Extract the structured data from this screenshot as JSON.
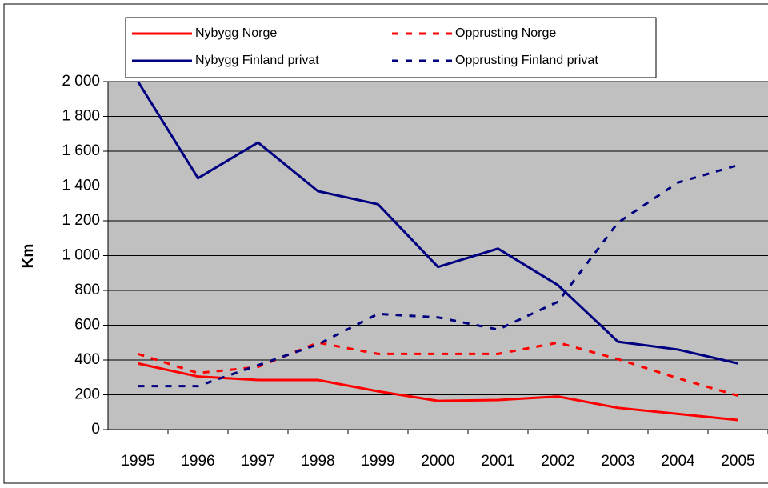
{
  "chart_data": {
    "type": "line",
    "y_label": "Km",
    "categories": [
      "1995",
      "1996",
      "1997",
      "1998",
      "1999",
      "2000",
      "2001",
      "2002",
      "2003",
      "2004",
      "2005"
    ],
    "series": [
      {
        "name": "Nybygg Norge",
        "color": "#ff0000",
        "style": "solid",
        "values": [
          380,
          305,
          285,
          285,
          220,
          165,
          170,
          190,
          125,
          90,
          55
        ]
      },
      {
        "name": "Opprusting Norge",
        "color": "#ff0000",
        "style": "dashed",
        "values": [
          435,
          325,
          360,
          500,
          435,
          435,
          435,
          500,
          405,
          295,
          195
        ]
      },
      {
        "name": "Nybygg Finland privat",
        "color": "#000080",
        "style": "solid",
        "values": [
          2000,
          1445,
          1650,
          1370,
          1295,
          935,
          1040,
          830,
          505,
          460,
          380
        ]
      },
      {
        "name": "Opprusting Finland privat",
        "color": "#000080",
        "style": "dashed",
        "values": [
          250,
          250,
          370,
          490,
          665,
          645,
          575,
          735,
          1190,
          1420,
          1520
        ]
      }
    ],
    "ylim": [
      0,
      2000
    ],
    "yticks": [
      0,
      200,
      400,
      600,
      800,
      {
        "value": 1000,
        "label": "1 000"
      },
      {
        "value": 1200,
        "label": "1 200"
      },
      {
        "value": 1400,
        "label": "1 400"
      },
      {
        "value": 1600,
        "label": "1 600"
      },
      {
        "value": 1800,
        "label": "1 800"
      },
      {
        "value": 2000,
        "label": "2 000"
      }
    ],
    "grid": true,
    "plot_background": "#c0c0c0"
  }
}
